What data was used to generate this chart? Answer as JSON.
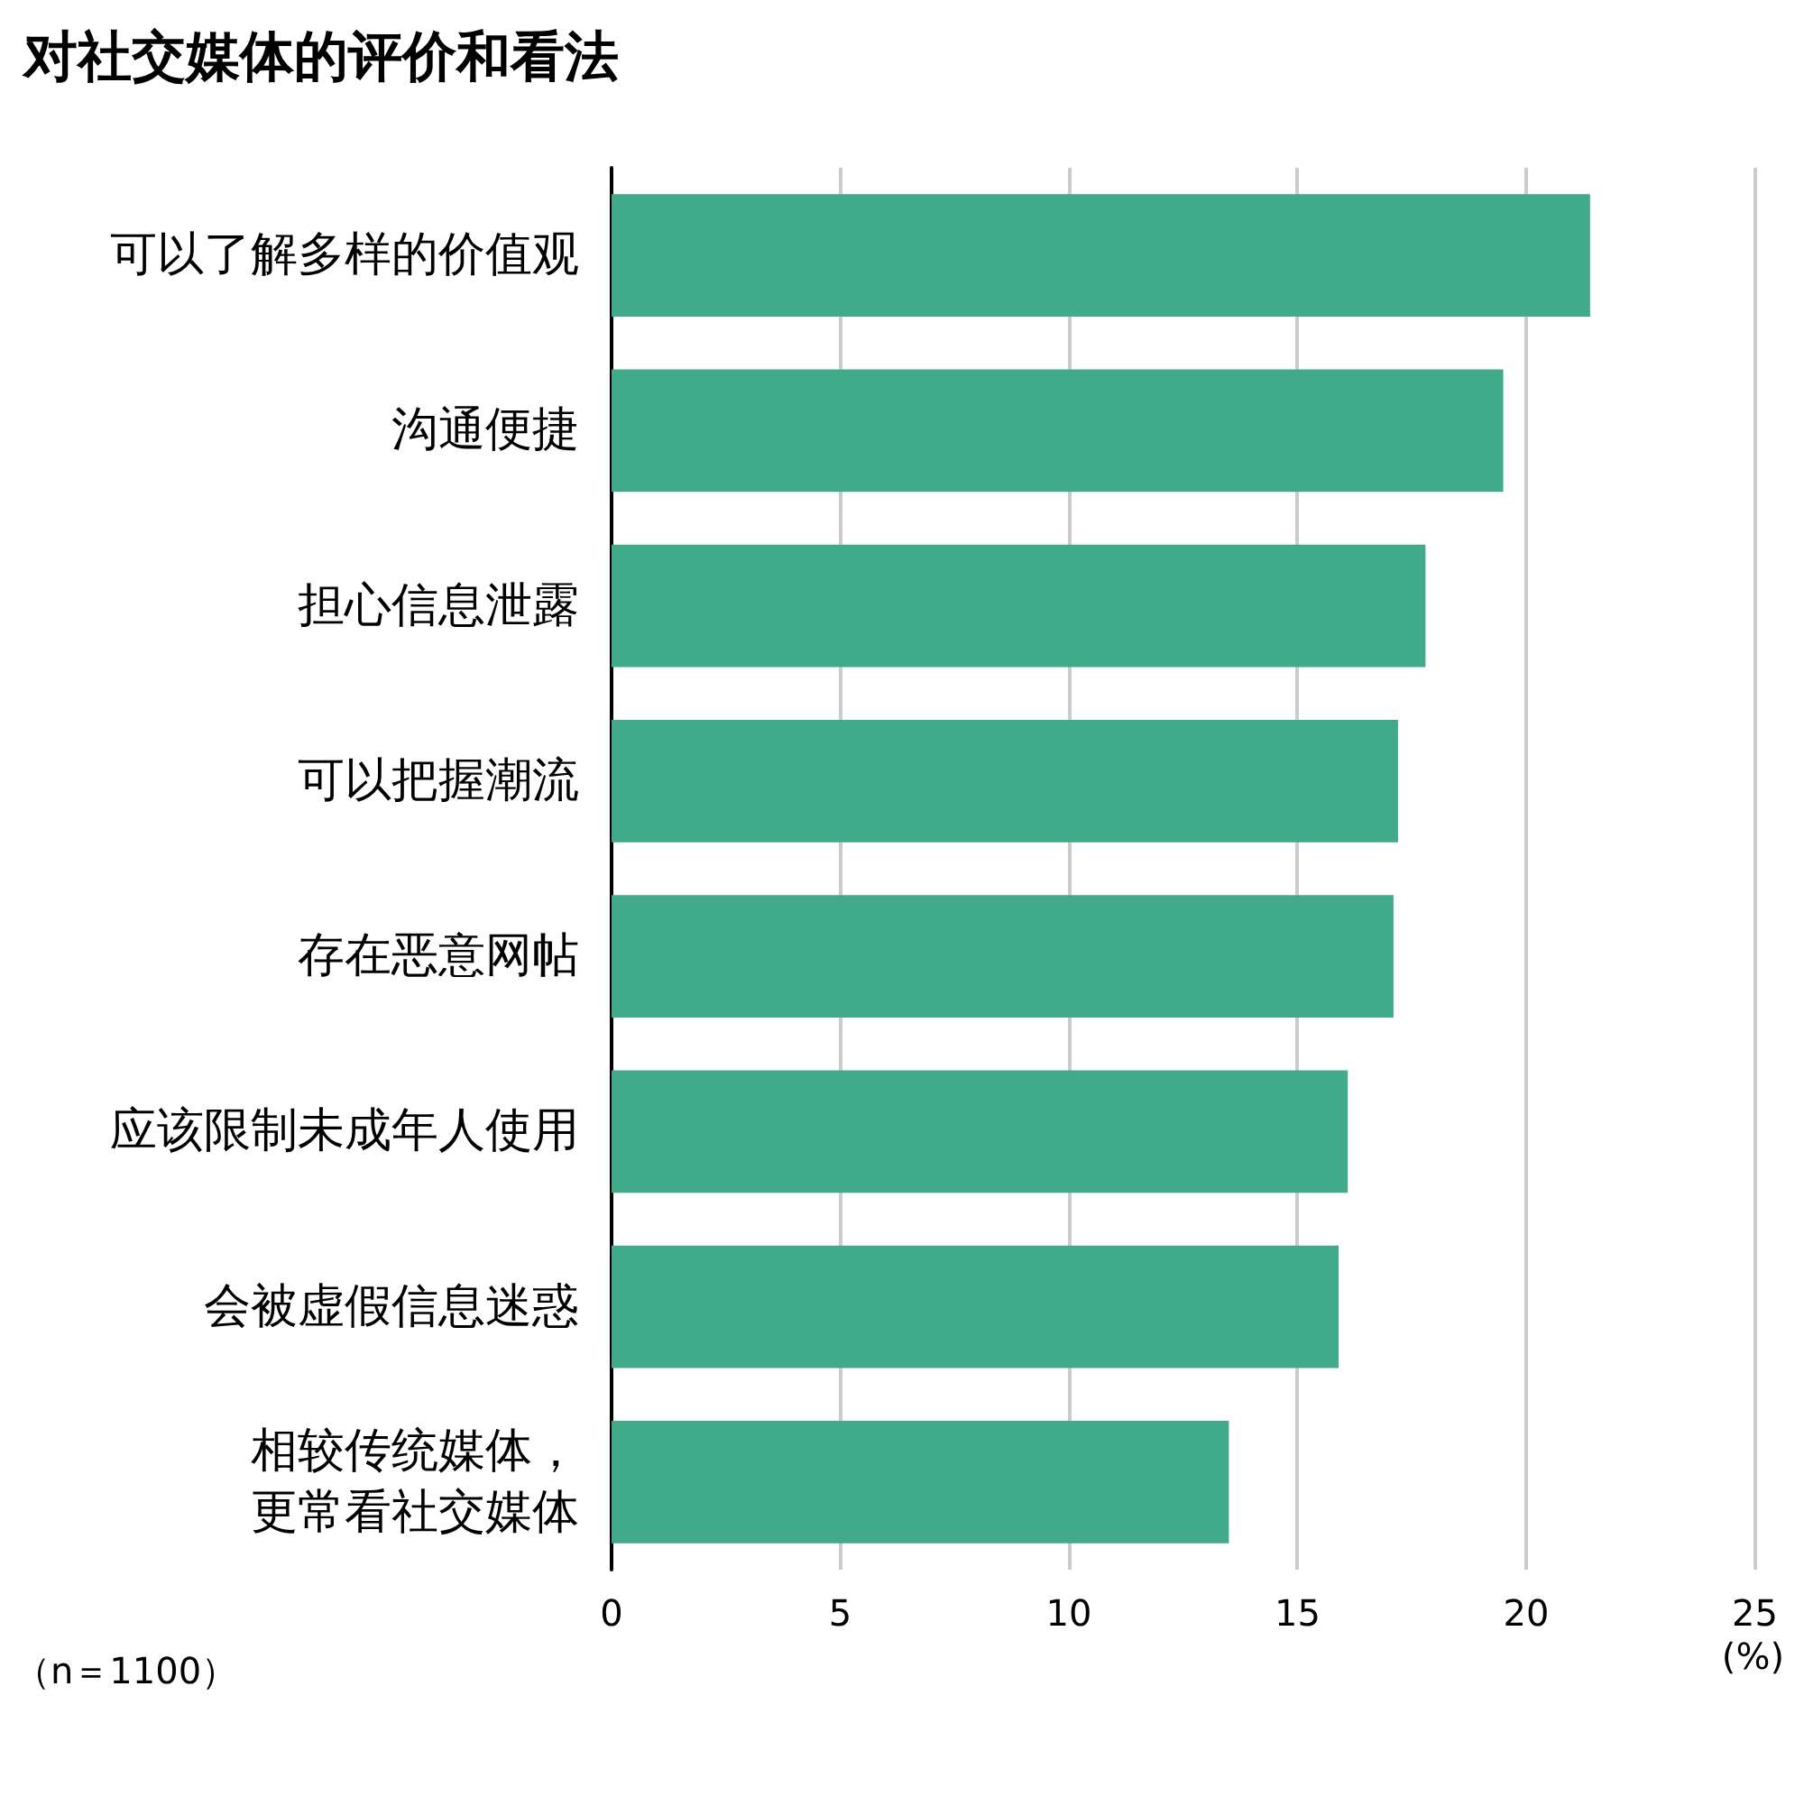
{
  "chart_data": {
    "type": "bar",
    "orientation": "horizontal",
    "title": "对社交媒体的评价和看法",
    "xlabel": "(%)",
    "categories": [
      "可以了解多样的价值观",
      "沟通便捷",
      "担心信息泄露",
      "可以把握潮流",
      "存在恶意网帖",
      "应该限制未成年人使用",
      "会被虚假信息迷惑",
      "相较传统媒体，更常看社交媒体"
    ],
    "values": [
      21.4,
      19.5,
      17.8,
      17.2,
      17.1,
      16.1,
      15.9,
      13.5
    ],
    "color": "#40aa8a",
    "xlim": [
      0,
      25
    ],
    "xticks": [
      0,
      5,
      10,
      15,
      20,
      25
    ],
    "grid": "x",
    "annotations": [
      "（n＝1100）"
    ]
  }
}
